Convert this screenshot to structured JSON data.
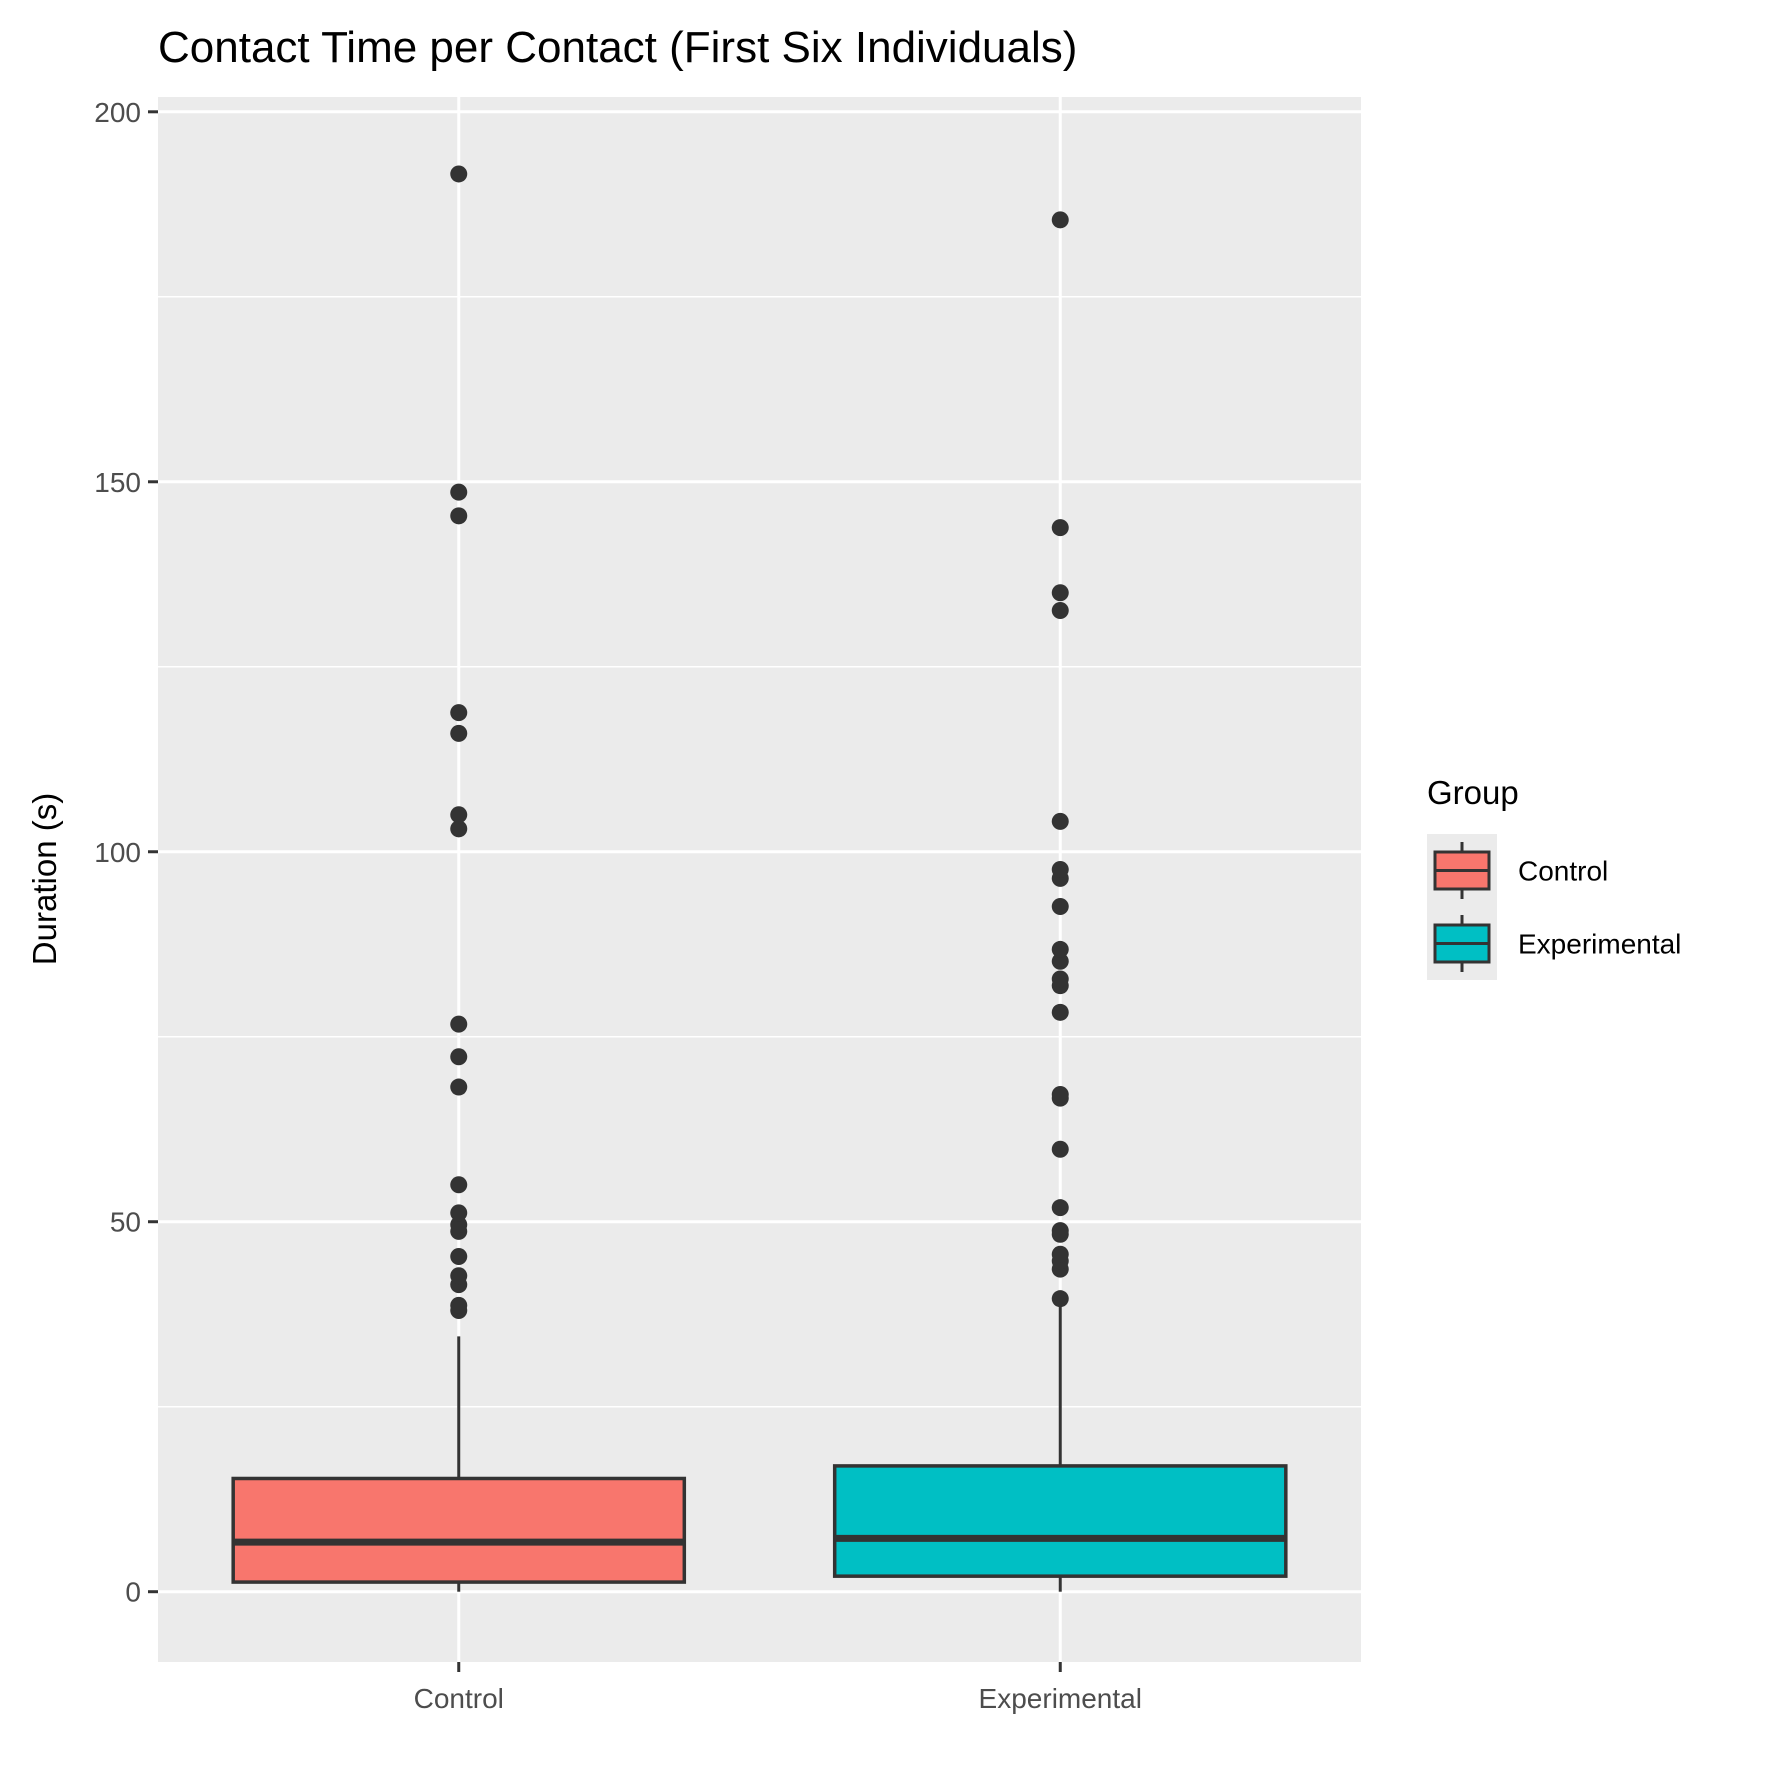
{
  "chart_data": {
    "type": "boxplot",
    "title": "Contact Time per Contact (First Six Individuals)",
    "xlabel": "",
    "ylabel": "Duration (s)",
    "ylim": [
      -9.5,
      202
    ],
    "y_ticks": [
      0,
      50,
      100,
      150,
      200
    ],
    "y_minor_ticks": [
      25,
      75,
      125,
      175
    ],
    "categories": [
      "Control",
      "Experimental"
    ],
    "legend": {
      "title": "Group",
      "position": "right",
      "entries": [
        {
          "label": "Control",
          "color": "#F8766D"
        },
        {
          "label": "Experimental",
          "color": "#00BFC4"
        }
      ]
    },
    "series": [
      {
        "category": "Control",
        "color": "#F8766D",
        "min": 0,
        "q1": 1.3,
        "median": 6.7,
        "q3": 15.3,
        "max": 34.5,
        "outliers": [
          38.0,
          38.7,
          41.5,
          42.7,
          45.3,
          48.7,
          49.6,
          51.2,
          55.0,
          68.2,
          72.3,
          76.7,
          103.1,
          105.0,
          116.0,
          118.8,
          145.4,
          148.6,
          191.6
        ]
      },
      {
        "category": "Experimental",
        "color": "#00BFC4",
        "min": 0,
        "q1": 2.1,
        "median": 7.2,
        "q3": 17.0,
        "max": 39.0,
        "outliers": [
          39.6,
          43.6,
          44.7,
          45.6,
          48.3,
          48.8,
          51.9,
          59.8,
          66.7,
          67.2,
          78.3,
          81.9,
          82.8,
          85.2,
          86.8,
          92.6,
          96.4,
          97.6,
          104.1,
          132.6,
          135.0,
          143.8,
          185.4
        ]
      }
    ]
  }
}
